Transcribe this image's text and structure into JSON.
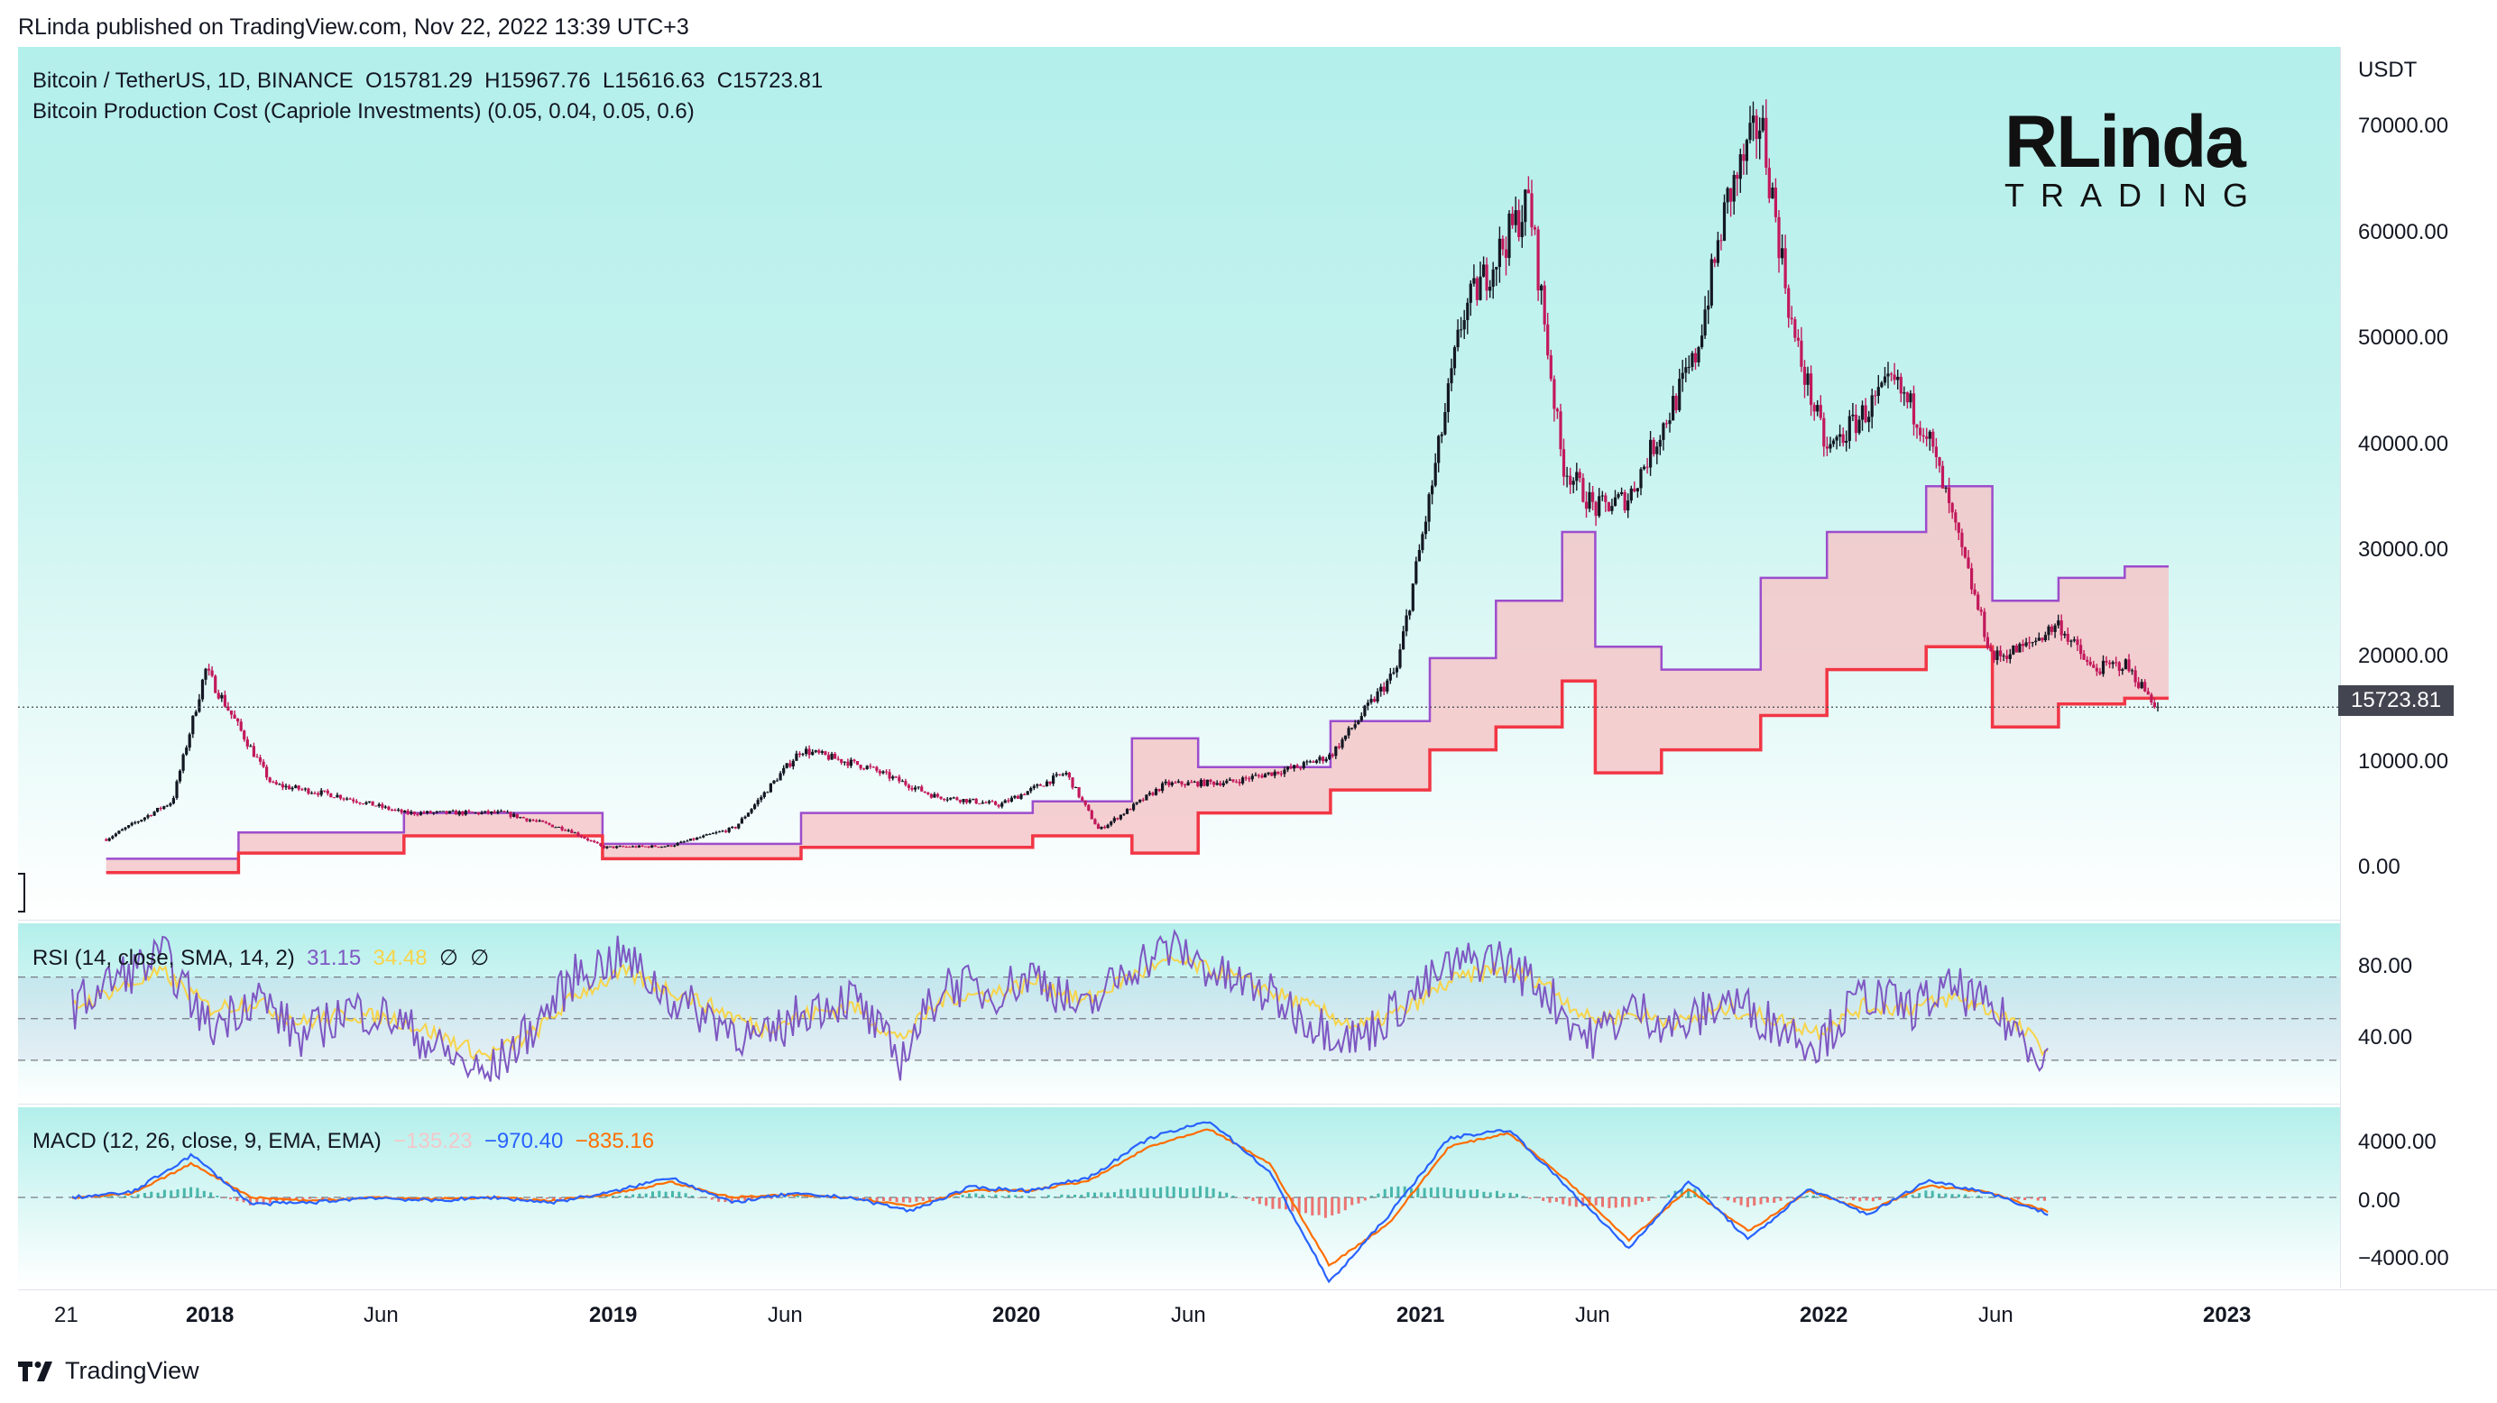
{
  "header": {
    "published": "RLinda published on TradingView.com, Nov 22, 2022 13:39 UTC+3"
  },
  "main": {
    "symbol_title": "Bitcoin / TetherUS, 1D, BINANCE",
    "ohlc": {
      "o": "O15781.29",
      "h": "H15967.76",
      "l": "L15616.63",
      "c": "C15723.81"
    },
    "indicator_title": "Bitcoin Production Cost (Capriole Investments) (0.05, 0.04, 0.05, 0.6)",
    "currency": "USDT",
    "last_price": "15723.81",
    "y_ticks": [
      "70000.00",
      "60000.00",
      "50000.00",
      "40000.00",
      "30000.00",
      "20000.00",
      "10000.00",
      "0.00"
    ]
  },
  "rsi": {
    "title": "RSI (14, close, SMA, 14, 2)",
    "value": "31.15",
    "sma_value": "34.48",
    "extra1": "∅",
    "extra2": "∅",
    "y_ticks": [
      "80.00",
      "40.00"
    ]
  },
  "macd": {
    "title": "MACD (12, 26, close, 9, EMA, EMA)",
    "hist_value": "−135.23",
    "macd_value": "−970.40",
    "signal_value": "−835.16",
    "y_ticks": [
      "4000.00",
      "0.00",
      "−4000.00"
    ]
  },
  "x_ticks": [
    {
      "label": "21",
      "bold": false
    },
    {
      "label": "2018",
      "bold": true
    },
    {
      "label": "Jun",
      "bold": false
    },
    {
      "label": "2019",
      "bold": true
    },
    {
      "label": "Jun",
      "bold": false
    },
    {
      "label": "2020",
      "bold": true
    },
    {
      "label": "Jun",
      "bold": false
    },
    {
      "label": "2021",
      "bold": true
    },
    {
      "label": "Jun",
      "bold": false
    },
    {
      "label": "2022",
      "bold": true
    },
    {
      "label": "Jun",
      "bold": false
    },
    {
      "label": "2023",
      "bold": true
    }
  ],
  "logo": {
    "line1": "RLinda",
    "line2": "TRADING"
  },
  "footer": {
    "brand": "TradingView"
  },
  "colors": {
    "candle_up": "#131722",
    "candle_down": "#c2185b",
    "cost_upper": "#9c4dcc",
    "cost_lower": "#f23645",
    "cost_fill": "#f4c7c9",
    "rsi": "#7e57c2",
    "rsi_sma": "#f7d44a",
    "macd": "#2962ff",
    "signal": "#ff6d00",
    "hist_up": "#26a69a",
    "hist_down": "#ef5350"
  },
  "chart_data": [
    {
      "type": "line",
      "title": "Bitcoin / TetherUS, 1D, BINANCE",
      "ylabel": "USDT",
      "ylim": [
        -2500,
        73000
      ],
      "grid": false,
      "series": [
        {
          "name": "Bitcoin / TetherUS",
          "x": [
            "2017-09",
            "2017-11",
            "2017-12",
            "2018-02",
            "2018-04",
            "2018-06",
            "2018-09",
            "2018-11",
            "2018-12",
            "2019-02",
            "2019-04",
            "2019-06",
            "2019-08",
            "2019-10",
            "2019-12",
            "2020-02",
            "2020-03",
            "2020-05",
            "2020-07",
            "2020-09",
            "2020-10",
            "2020-12",
            "2021-01",
            "2021-02",
            "2021-04",
            "2021-05",
            "2021-06",
            "2021-07",
            "2021-09",
            "2021-10",
            "2021-11",
            "2021-12",
            "2022-01",
            "2022-03",
            "2022-04",
            "2022-05",
            "2022-06",
            "2022-07",
            "2022-08",
            "2022-09",
            "2022-10",
            "2022-11"
          ],
          "values": [
            4200,
            7500,
            19000,
            9000,
            8000,
            6500,
            6500,
            5000,
            3500,
            3600,
            5200,
            12000,
            10500,
            8000,
            7200,
            10000,
            5000,
            9000,
            9200,
            10500,
            11500,
            19000,
            34000,
            50000,
            60000,
            37000,
            33000,
            34000,
            46000,
            60000,
            67000,
            48000,
            38000,
            44000,
            40000,
            30000,
            20000,
            21000,
            23000,
            19000,
            19500,
            15723.81
          ]
        },
        {
          "name": "Production Cost Upper",
          "x": [
            "2017-09",
            "2018-01",
            "2018-06",
            "2018-12",
            "2019-06",
            "2020-01",
            "2020-04",
            "2020-06",
            "2020-10",
            "2021-01",
            "2021-03",
            "2021-05",
            "2021-06",
            "2021-08",
            "2021-11",
            "2022-01",
            "2022-04",
            "2022-06",
            "2022-08",
            "2022-10",
            "2022-11"
          ],
          "values": [
            2500,
            4800,
            6500,
            3800,
            6500,
            7500,
            13000,
            10500,
            14500,
            20000,
            25000,
            31000,
            21000,
            19000,
            27000,
            31000,
            35000,
            25000,
            27000,
            28000,
            28000
          ]
        },
        {
          "name": "Production Cost Lower",
          "x": [
            "2017-09",
            "2018-01",
            "2018-06",
            "2018-12",
            "2019-06",
            "2020-01",
            "2020-04",
            "2020-06",
            "2020-10",
            "2021-01",
            "2021-03",
            "2021-05",
            "2021-06",
            "2021-08",
            "2021-11",
            "2022-01",
            "2022-04",
            "2022-06",
            "2022-08",
            "2022-10",
            "2022-11"
          ],
          "values": [
            1300,
            3000,
            4500,
            2500,
            3500,
            4500,
            3000,
            6500,
            8500,
            12000,
            14000,
            18000,
            10000,
            12000,
            15000,
            19000,
            21000,
            14000,
            16000,
            16500,
            16500
          ]
        }
      ]
    },
    {
      "type": "line",
      "title": "RSI (14, close, SMA, 14, 2)",
      "ylim": [
        10,
        95
      ],
      "series": [
        {
          "name": "RSI",
          "values": [
            55,
            70,
            80,
            45,
            62,
            40,
            55,
            50,
            35,
            22,
            45,
            72,
            80,
            60,
            50,
            38,
            55,
            60,
            30,
            68,
            62,
            72,
            52,
            75,
            85,
            70,
            62,
            48,
            40,
            58,
            75,
            80,
            65,
            40,
            55,
            45,
            60,
            48,
            38,
            62,
            55,
            65,
            50,
            31.15
          ]
        },
        {
          "name": "RSI SMA",
          "values": [
            55,
            65,
            72,
            55,
            58,
            48,
            52,
            50,
            42,
            32,
            42,
            62,
            72,
            64,
            55,
            45,
            52,
            56,
            40,
            60,
            62,
            68,
            58,
            70,
            78,
            72,
            64,
            55,
            46,
            54,
            68,
            74,
            68,
            50,
            52,
            48,
            55,
            50,
            44,
            56,
            55,
            60,
            52,
            34.48
          ]
        }
      ]
    },
    {
      "type": "line",
      "title": "MACD (12, 26, close, 9, EMA, EMA)",
      "ylim": [
        -5200,
        5200
      ],
      "series": [
        {
          "name": "MACD",
          "values": [
            0,
            300,
            2500,
            -400,
            -300,
            0,
            -200,
            0,
            -300,
            300,
            1200,
            -300,
            200,
            0,
            -800,
            600,
            400,
            1200,
            3500,
            4500,
            1500,
            -5000,
            -1000,
            3500,
            4000,
            500,
            -3000,
            1000,
            -2500,
            500,
            -1000,
            1000,
            300,
            -970.4
          ]
        },
        {
          "name": "Signal",
          "values": [
            0,
            200,
            2000,
            0,
            -200,
            0,
            -100,
            0,
            -200,
            200,
            900,
            0,
            150,
            0,
            -500,
            400,
            400,
            1000,
            3000,
            4000,
            2000,
            -4000,
            -1500,
            3000,
            3800,
            900,
            -2500,
            500,
            -2000,
            400,
            -800,
            700,
            300,
            -835.16
          ]
        }
      ]
    }
  ]
}
